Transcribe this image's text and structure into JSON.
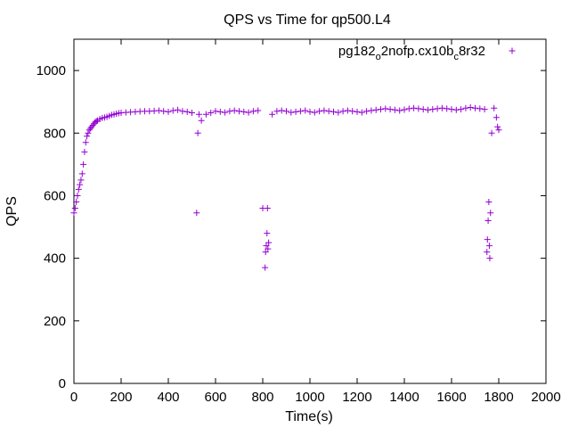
{
  "chart_data": {
    "type": "scatter",
    "title": "QPS vs Time for qp500.L4",
    "xlabel": "Time(s)",
    "ylabel": "QPS",
    "xlim": [
      0,
      2000
    ],
    "ylim": [
      0,
      1100
    ],
    "xticks": [
      0,
      200,
      400,
      600,
      800,
      1000,
      1200,
      1400,
      1600,
      1800,
      2000
    ],
    "yticks": [
      0,
      200,
      400,
      600,
      800,
      1000
    ],
    "xtick_labels": [
      "0",
      "200",
      "400",
      "600",
      "800",
      "1000",
      "1200",
      "1400",
      "1600",
      "1800",
      "2000"
    ],
    "ytick_labels": [
      "0",
      "200",
      "400",
      "600",
      "800",
      "1000"
    ],
    "grid": false,
    "legend_position": "top-right",
    "marker": "+",
    "color": "#9400d3",
    "series": [
      {
        "name": "pg182_o2nofp.cx10b_c8r32",
        "name_parts": {
          "a": "pg182",
          "b": "o",
          "c": "2nofp.cx10b",
          "d": "c",
          "e": "8r32"
        },
        "x": [
          0,
          5,
          10,
          15,
          20,
          25,
          30,
          35,
          40,
          45,
          50,
          55,
          60,
          65,
          70,
          75,
          80,
          85,
          90,
          95,
          100,
          110,
          120,
          130,
          140,
          150,
          160,
          170,
          180,
          190,
          200,
          220,
          240,
          260,
          280,
          300,
          320,
          340,
          360,
          380,
          400,
          420,
          440,
          460,
          480,
          500,
          520,
          525,
          530,
          540,
          560,
          580,
          600,
          620,
          640,
          660,
          680,
          700,
          720,
          740,
          760,
          780,
          800,
          810,
          812,
          815,
          818,
          820,
          822,
          825,
          840,
          860,
          880,
          900,
          920,
          940,
          960,
          980,
          1000,
          1020,
          1040,
          1060,
          1080,
          1100,
          1120,
          1140,
          1160,
          1180,
          1200,
          1220,
          1240,
          1260,
          1280,
          1300,
          1320,
          1340,
          1360,
          1380,
          1400,
          1420,
          1440,
          1460,
          1480,
          1500,
          1520,
          1540,
          1560,
          1580,
          1600,
          1620,
          1640,
          1660,
          1680,
          1700,
          1720,
          1740,
          1750,
          1752,
          1755,
          1758,
          1760,
          1762,
          1765,
          1770,
          1780,
          1790,
          1795,
          1800
        ],
        "y": [
          545,
          560,
          580,
          600,
          620,
          635,
          650,
          670,
          700,
          740,
          770,
          790,
          800,
          810,
          815,
          820,
          825,
          830,
          835,
          838,
          840,
          845,
          848,
          850,
          852,
          855,
          858,
          860,
          862,
          864,
          865,
          866,
          867,
          868,
          869,
          870,
          870,
          871,
          872,
          870,
          868,
          872,
          874,
          870,
          868,
          865,
          545,
          800,
          860,
          840,
          860,
          865,
          870,
          868,
          866,
          870,
          872,
          870,
          868,
          866,
          870,
          872,
          560,
          370,
          420,
          440,
          480,
          560,
          430,
          450,
          860,
          870,
          872,
          870,
          866,
          868,
          870,
          872,
          868,
          866,
          870,
          872,
          870,
          868,
          866,
          870,
          872,
          870,
          868,
          866,
          870,
          872,
          874,
          876,
          878,
          876,
          874,
          872,
          875,
          878,
          880,
          878,
          876,
          874,
          876,
          878,
          880,
          878,
          876,
          874,
          876,
          880,
          882,
          880,
          878,
          876,
          420,
          460,
          520,
          580,
          440,
          400,
          545,
          800,
          880,
          850,
          820,
          810
        ]
      }
    ]
  }
}
